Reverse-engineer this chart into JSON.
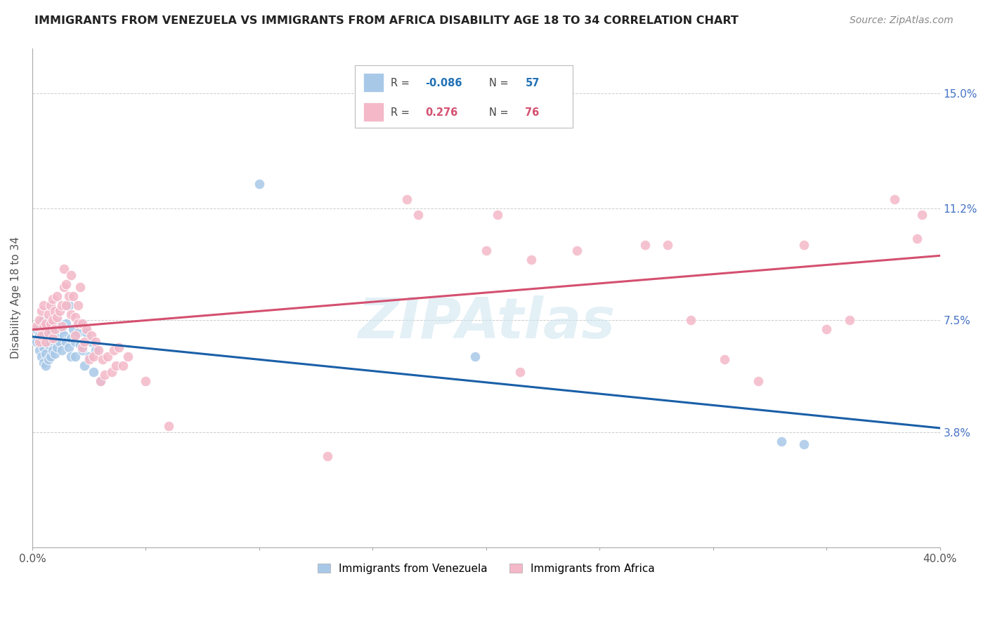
{
  "title": "IMMIGRANTS FROM VENEZUELA VS IMMIGRANTS FROM AFRICA DISABILITY AGE 18 TO 34 CORRELATION CHART",
  "source": "Source: ZipAtlas.com",
  "ylabel": "Disability Age 18 to 34",
  "xlim": [
    0.0,
    0.4
  ],
  "ylim": [
    0.0,
    0.165
  ],
  "ytick_positions": [
    0.038,
    0.075,
    0.112,
    0.15
  ],
  "ytick_labels": [
    "3.8%",
    "7.5%",
    "11.2%",
    "15.0%"
  ],
  "venezuela_color": "#a8c8e8",
  "africa_color": "#f4b8c8",
  "venezuela_line_color": "#1a5fa8",
  "africa_line_color": "#d45070",
  "watermark": "ZIPAtlas",
  "venezuela_points": [
    [
      0.002,
      0.068
    ],
    [
      0.002,
      0.072
    ],
    [
      0.003,
      0.065
    ],
    [
      0.003,
      0.07
    ],
    [
      0.003,
      0.074
    ],
    [
      0.004,
      0.063
    ],
    [
      0.004,
      0.068
    ],
    [
      0.004,
      0.072
    ],
    [
      0.005,
      0.061
    ],
    [
      0.005,
      0.066
    ],
    [
      0.005,
      0.07
    ],
    [
      0.005,
      0.075
    ],
    [
      0.006,
      0.06
    ],
    [
      0.006,
      0.064
    ],
    [
      0.006,
      0.069
    ],
    [
      0.006,
      0.073
    ],
    [
      0.007,
      0.062
    ],
    [
      0.007,
      0.067
    ],
    [
      0.007,
      0.071
    ],
    [
      0.008,
      0.063
    ],
    [
      0.008,
      0.068
    ],
    [
      0.008,
      0.072
    ],
    [
      0.009,
      0.065
    ],
    [
      0.009,
      0.069
    ],
    [
      0.009,
      0.074
    ],
    [
      0.01,
      0.064
    ],
    [
      0.01,
      0.069
    ],
    [
      0.011,
      0.066
    ],
    [
      0.011,
      0.071
    ],
    [
      0.012,
      0.074
    ],
    [
      0.012,
      0.068
    ],
    [
      0.013,
      0.072
    ],
    [
      0.013,
      0.065
    ],
    [
      0.014,
      0.07
    ],
    [
      0.015,
      0.068
    ],
    [
      0.015,
      0.074
    ],
    [
      0.016,
      0.066
    ],
    [
      0.016,
      0.08
    ],
    [
      0.017,
      0.063
    ],
    [
      0.017,
      0.069
    ],
    [
      0.018,
      0.072
    ],
    [
      0.019,
      0.063
    ],
    [
      0.019,
      0.068
    ],
    [
      0.02,
      0.071
    ],
    [
      0.021,
      0.067
    ],
    [
      0.021,
      0.074
    ],
    [
      0.022,
      0.065
    ],
    [
      0.023,
      0.06
    ],
    [
      0.024,
      0.071
    ],
    [
      0.025,
      0.063
    ],
    [
      0.026,
      0.068
    ],
    [
      0.027,
      0.058
    ],
    [
      0.028,
      0.065
    ],
    [
      0.03,
      0.055
    ],
    [
      0.1,
      0.12
    ],
    [
      0.195,
      0.063
    ],
    [
      0.33,
      0.035
    ],
    [
      0.34,
      0.034
    ]
  ],
  "africa_points": [
    [
      0.002,
      0.073
    ],
    [
      0.003,
      0.068
    ],
    [
      0.003,
      0.075
    ],
    [
      0.004,
      0.07
    ],
    [
      0.004,
      0.078
    ],
    [
      0.005,
      0.073
    ],
    [
      0.005,
      0.08
    ],
    [
      0.006,
      0.068
    ],
    [
      0.006,
      0.074
    ],
    [
      0.007,
      0.071
    ],
    [
      0.007,
      0.077
    ],
    [
      0.008,
      0.074
    ],
    [
      0.008,
      0.08
    ],
    [
      0.009,
      0.069
    ],
    [
      0.009,
      0.075
    ],
    [
      0.009,
      0.082
    ],
    [
      0.01,
      0.072
    ],
    [
      0.01,
      0.078
    ],
    [
      0.011,
      0.076
    ],
    [
      0.011,
      0.083
    ],
    [
      0.012,
      0.078
    ],
    [
      0.013,
      0.073
    ],
    [
      0.013,
      0.08
    ],
    [
      0.014,
      0.086
    ],
    [
      0.014,
      0.092
    ],
    [
      0.015,
      0.08
    ],
    [
      0.015,
      0.087
    ],
    [
      0.016,
      0.083
    ],
    [
      0.017,
      0.077
    ],
    [
      0.017,
      0.09
    ],
    [
      0.018,
      0.083
    ],
    [
      0.019,
      0.076
    ],
    [
      0.019,
      0.07
    ],
    [
      0.02,
      0.074
    ],
    [
      0.02,
      0.08
    ],
    [
      0.021,
      0.086
    ],
    [
      0.022,
      0.066
    ],
    [
      0.022,
      0.074
    ],
    [
      0.023,
      0.068
    ],
    [
      0.024,
      0.072
    ],
    [
      0.025,
      0.062
    ],
    [
      0.026,
      0.07
    ],
    [
      0.027,
      0.063
    ],
    [
      0.028,
      0.068
    ],
    [
      0.029,
      0.065
    ],
    [
      0.03,
      0.055
    ],
    [
      0.031,
      0.062
    ],
    [
      0.032,
      0.057
    ],
    [
      0.033,
      0.063
    ],
    [
      0.035,
      0.058
    ],
    [
      0.036,
      0.065
    ],
    [
      0.037,
      0.06
    ],
    [
      0.038,
      0.066
    ],
    [
      0.04,
      0.06
    ],
    [
      0.042,
      0.063
    ],
    [
      0.05,
      0.055
    ],
    [
      0.06,
      0.04
    ],
    [
      0.155,
      0.15
    ],
    [
      0.165,
      0.115
    ],
    [
      0.17,
      0.11
    ],
    [
      0.2,
      0.098
    ],
    [
      0.205,
      0.11
    ],
    [
      0.215,
      0.058
    ],
    [
      0.22,
      0.095
    ],
    [
      0.24,
      0.098
    ],
    [
      0.27,
      0.1
    ],
    [
      0.28,
      0.1
    ],
    [
      0.29,
      0.075
    ],
    [
      0.305,
      0.062
    ],
    [
      0.32,
      0.055
    ],
    [
      0.34,
      0.1
    ],
    [
      0.35,
      0.072
    ],
    [
      0.36,
      0.075
    ],
    [
      0.38,
      0.115
    ],
    [
      0.39,
      0.102
    ],
    [
      0.392,
      0.11
    ],
    [
      0.13,
      0.03
    ]
  ]
}
